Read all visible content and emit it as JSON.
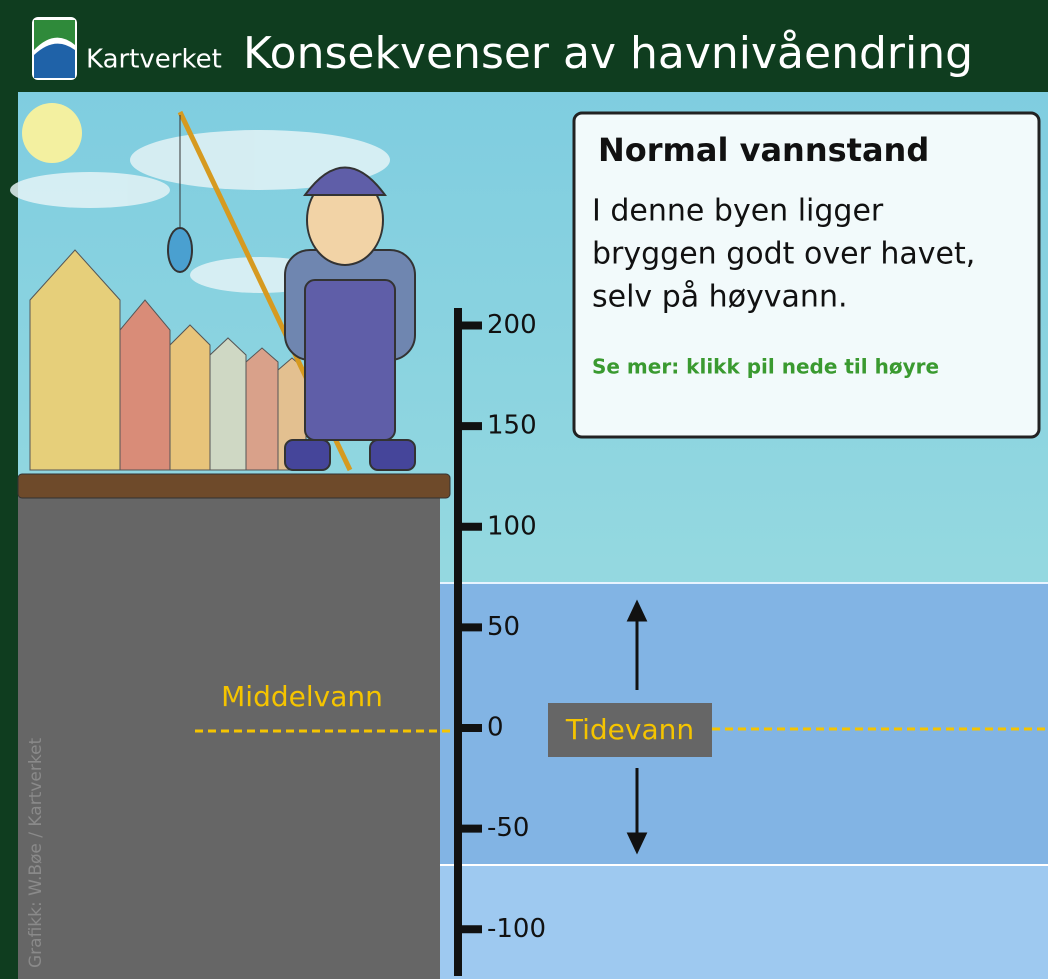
{
  "header": {
    "brand": "Kartverket",
    "title": "Konsekvenser av havnivåendring"
  },
  "info": {
    "heading": "Normal vannstand",
    "lines": [
      "I denne byen ligger",
      "bryggen godt over havet,",
      "selv på høyvann."
    ],
    "link": "Se mer: klikk pil nede til høyre"
  },
  "scale": {
    "ticks": [
      200,
      150,
      100,
      50,
      0,
      -50,
      -100
    ]
  },
  "labels": {
    "mean": "Middelvann",
    "tide": "Tidevann"
  },
  "credit": "Grafikk: W.Bøe / Kartverket"
}
